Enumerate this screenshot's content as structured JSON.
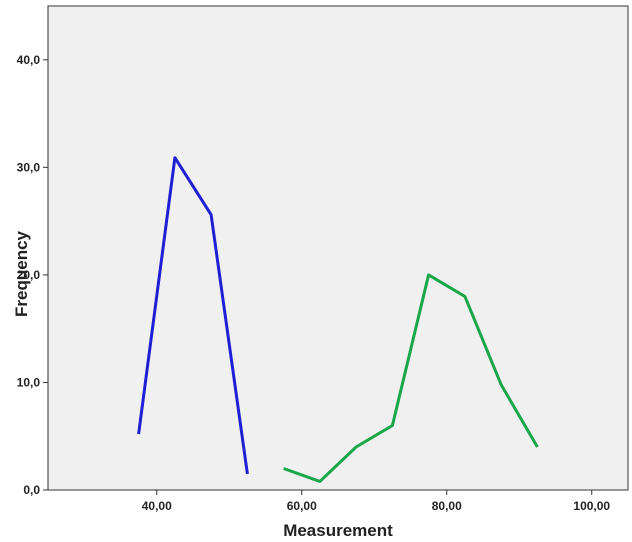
{
  "chart_data": {
    "type": "line",
    "title": "",
    "xlabel": "Measurement",
    "ylabel": "Frequency",
    "xlim": [
      25,
      105
    ],
    "ylim": [
      0,
      45
    ],
    "x_ticks": [
      40,
      60,
      80,
      100
    ],
    "x_tick_labels": [
      "40,00",
      "60,00",
      "80,00",
      "100,00"
    ],
    "y_ticks": [
      0,
      10,
      20,
      30,
      40
    ],
    "y_tick_labels": [
      "0,0",
      "10,0",
      "20,0",
      "30,0",
      "40,0"
    ],
    "grid": false,
    "legend": "none",
    "plot_background": "#f0f0f0",
    "series": [
      {
        "color": "#1f1fd6",
        "x": [
          37.5,
          42.5,
          47.5,
          52.5
        ],
        "y": [
          5.2,
          30.9,
          25.6,
          1.5
        ]
      },
      {
        "color": "#1aa64a",
        "x": [
          57.5,
          62.5,
          67.5,
          72.5,
          77.5,
          82.5,
          87.5,
          92.5
        ],
        "y": [
          2.0,
          0.8,
          4.0,
          6.0,
          20.0,
          18.0,
          9.8,
          4.0
        ]
      }
    ]
  }
}
